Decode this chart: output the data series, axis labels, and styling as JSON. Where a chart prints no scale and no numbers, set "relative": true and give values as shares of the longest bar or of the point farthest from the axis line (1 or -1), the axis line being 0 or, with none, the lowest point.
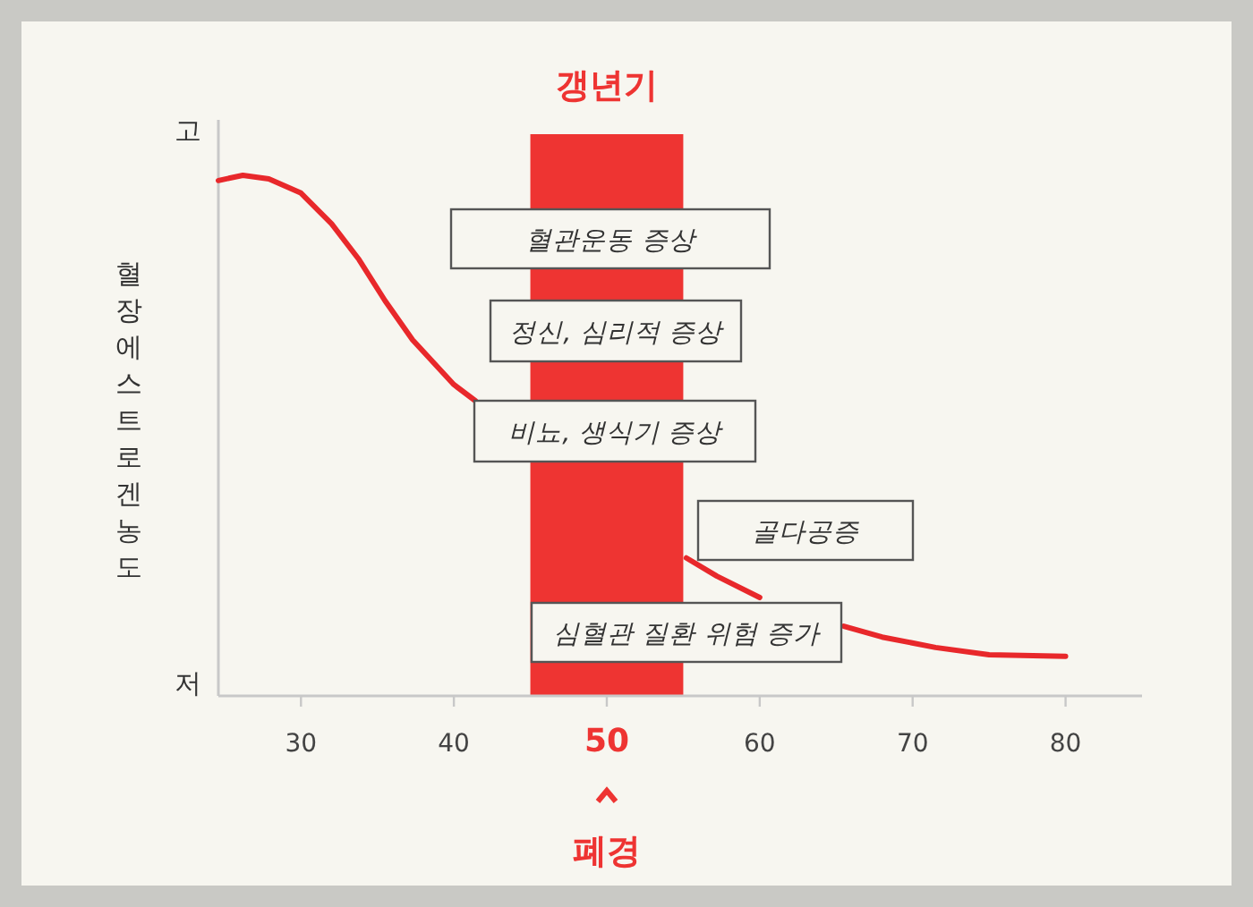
{
  "chart_data": {
    "type": "line",
    "relative": true,
    "ylabel": "혈장에스트로겐농도",
    "xlim": [
      24.6,
      85
    ],
    "xticks": [
      30,
      40,
      50,
      60,
      70,
      80
    ],
    "series": [
      {
        "color": "#e8282b",
        "x": [
          24.6,
          26.2,
          27.9,
          30,
          32,
          33.8,
          35.5,
          37.3,
          40,
          41.4
        ],
        "values": [
          0.99,
          1,
          0.993,
          0.966,
          0.907,
          0.838,
          0.759,
          0.684,
          0.598,
          0.567
        ]
      },
      {
        "color": "#e8282b",
        "x": [
          55.2,
          57.2,
          60
        ],
        "values": [
          0.265,
          0.23,
          0.189
        ]
      },
      {
        "color": "#e8282b",
        "x": [
          65.5,
          68,
          71.5,
          75,
          80
        ],
        "values": [
          0.134,
          0.113,
          0.093,
          0.079,
          0.076
        ]
      }
    ],
    "bands": [
      {
        "axis": "x",
        "from": 45,
        "to": 55,
        "label": "갱년기",
        "color": "#ee3432"
      }
    ],
    "annotations": [
      "혈관운동 증상",
      "정신, 심리적 증상",
      "비뇨, 생식기 증상",
      "골다공증",
      "심혈관 질환 위험 증가",
      "폐경",
      "고",
      "저"
    ],
    "line_style": "solid"
  }
}
